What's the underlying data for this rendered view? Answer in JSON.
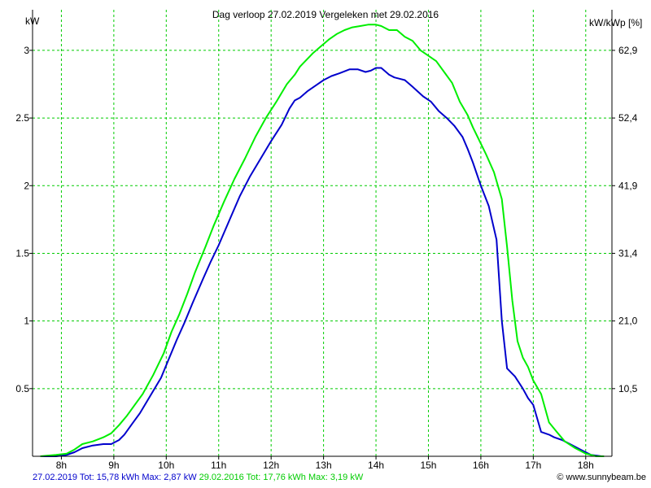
{
  "header": {
    "title": "Dag  verloop 27.02.2019   Vergeleken met 29.02.2016",
    "left_unit": "kW",
    "right_unit": "kW/kWp [%]"
  },
  "footer": {
    "series1_summary": "27.02.2019 Tot: 15,78 kWh Max: 2,87 kW",
    "series2_summary": "29.02.2016 Tot: 17,76 kWh Max: 3,19 kW",
    "credit": "© www.sunnybeam.be"
  },
  "chart_data": {
    "type": "line",
    "title": "Dag  verloop 27.02.2019   Vergeleken met 29.02.2016",
    "ylabel": "kW",
    "ylabel_right": "kW/kWp [%]",
    "xlim": [
      7.45,
      18.5
    ],
    "ylim": [
      0,
      3.3
    ],
    "grid": true,
    "x_ticks": [
      {
        "value": 8,
        "label": "8h"
      },
      {
        "value": 9,
        "label": "9h"
      },
      {
        "value": 10,
        "label": "10h"
      },
      {
        "value": 11,
        "label": "11h"
      },
      {
        "value": 12,
        "label": "12h"
      },
      {
        "value": 13,
        "label": "13h"
      },
      {
        "value": 14,
        "label": "14h"
      },
      {
        "value": 15,
        "label": "15h"
      },
      {
        "value": 16,
        "label": "16h"
      },
      {
        "value": 17,
        "label": "17h"
      },
      {
        "value": 18,
        "label": "18h"
      }
    ],
    "y_ticks_left": [
      {
        "value": 0.5,
        "label": "0.5"
      },
      {
        "value": 1,
        "label": "1"
      },
      {
        "value": 1.5,
        "label": "1.5"
      },
      {
        "value": 2,
        "label": "2"
      },
      {
        "value": 2.5,
        "label": "2.5"
      },
      {
        "value": 3,
        "label": "3"
      }
    ],
    "y_ticks_right": [
      {
        "value": 0.5,
        "label": "10,5"
      },
      {
        "value": 1,
        "label": "21,0"
      },
      {
        "value": 1.5,
        "label": "31,4"
      },
      {
        "value": 2,
        "label": "41,9"
      },
      {
        "value": 2.5,
        "label": "52,4"
      },
      {
        "value": 3,
        "label": "62,9"
      }
    ],
    "colors": {
      "series1": "#0000cc",
      "series2": "#00ee00",
      "grid": "#00cc00",
      "axis": "#000000"
    },
    "series": [
      {
        "name": "27.02.2019",
        "color": "#0000cc",
        "x": [
          7.6,
          7.9,
          8.1,
          8.25,
          8.4,
          8.6,
          8.8,
          8.95,
          9.1,
          9.2,
          9.35,
          9.5,
          9.7,
          9.9,
          10.05,
          10.2,
          10.35,
          10.5,
          10.7,
          10.85,
          11.0,
          11.2,
          11.4,
          11.6,
          11.8,
          12.0,
          12.2,
          12.35,
          12.45,
          12.55,
          12.7,
          12.85,
          13.0,
          13.15,
          13.3,
          13.5,
          13.65,
          13.8,
          13.9,
          14.0,
          14.1,
          14.25,
          14.35,
          14.45,
          14.55,
          14.7,
          14.9,
          15.05,
          15.2,
          15.35,
          15.5,
          15.65,
          15.75,
          15.85,
          16.0,
          16.15,
          16.3,
          16.4,
          16.5,
          16.65,
          16.8,
          16.9,
          17.0,
          17.15,
          17.3,
          17.4,
          17.55,
          17.7,
          17.9,
          18.1,
          18.3
        ],
        "y": [
          0.0,
          0.0,
          0.01,
          0.03,
          0.06,
          0.08,
          0.09,
          0.09,
          0.12,
          0.16,
          0.24,
          0.32,
          0.45,
          0.58,
          0.72,
          0.86,
          0.99,
          1.13,
          1.31,
          1.44,
          1.56,
          1.74,
          1.92,
          2.07,
          2.2,
          2.33,
          2.45,
          2.57,
          2.63,
          2.65,
          2.7,
          2.74,
          2.78,
          2.81,
          2.83,
          2.86,
          2.86,
          2.84,
          2.85,
          2.87,
          2.87,
          2.82,
          2.8,
          2.79,
          2.78,
          2.73,
          2.66,
          2.62,
          2.55,
          2.5,
          2.44,
          2.36,
          2.27,
          2.17,
          2.0,
          1.85,
          1.6,
          1.0,
          0.65,
          0.59,
          0.5,
          0.43,
          0.38,
          0.18,
          0.16,
          0.14,
          0.12,
          0.09,
          0.05,
          0.01,
          0.0
        ]
      },
      {
        "name": "29.02.2016",
        "color": "#00ee00",
        "x": [
          7.6,
          7.9,
          8.1,
          8.25,
          8.4,
          8.6,
          8.8,
          8.95,
          9.1,
          9.25,
          9.4,
          9.55,
          9.75,
          9.95,
          10.1,
          10.25,
          10.4,
          10.55,
          10.75,
          10.9,
          11.1,
          11.3,
          11.5,
          11.7,
          11.9,
          12.1,
          12.3,
          12.45,
          12.55,
          12.65,
          12.8,
          12.95,
          13.1,
          13.25,
          13.4,
          13.55,
          13.7,
          13.85,
          14.0,
          14.1,
          14.25,
          14.4,
          14.55,
          14.7,
          14.85,
          15.0,
          15.15,
          15.3,
          15.45,
          15.6,
          15.75,
          15.85,
          15.95,
          16.1,
          16.25,
          16.4,
          16.5,
          16.6,
          16.7,
          16.8,
          16.9,
          17.0,
          17.15,
          17.3,
          17.45,
          17.6,
          17.8,
          18.0,
          18.2,
          18.35
        ],
        "y": [
          0.0,
          0.01,
          0.02,
          0.05,
          0.09,
          0.11,
          0.14,
          0.17,
          0.23,
          0.3,
          0.38,
          0.46,
          0.6,
          0.76,
          0.92,
          1.05,
          1.2,
          1.36,
          1.55,
          1.7,
          1.88,
          2.05,
          2.2,
          2.36,
          2.5,
          2.62,
          2.75,
          2.82,
          2.88,
          2.92,
          2.98,
          3.03,
          3.08,
          3.12,
          3.15,
          3.17,
          3.18,
          3.19,
          3.19,
          3.18,
          3.15,
          3.15,
          3.1,
          3.07,
          3.0,
          2.96,
          2.92,
          2.84,
          2.76,
          2.62,
          2.52,
          2.43,
          2.35,
          2.23,
          2.1,
          1.9,
          1.55,
          1.15,
          0.85,
          0.73,
          0.66,
          0.56,
          0.46,
          0.25,
          0.18,
          0.11,
          0.06,
          0.02,
          0.0,
          0.0
        ]
      }
    ]
  }
}
